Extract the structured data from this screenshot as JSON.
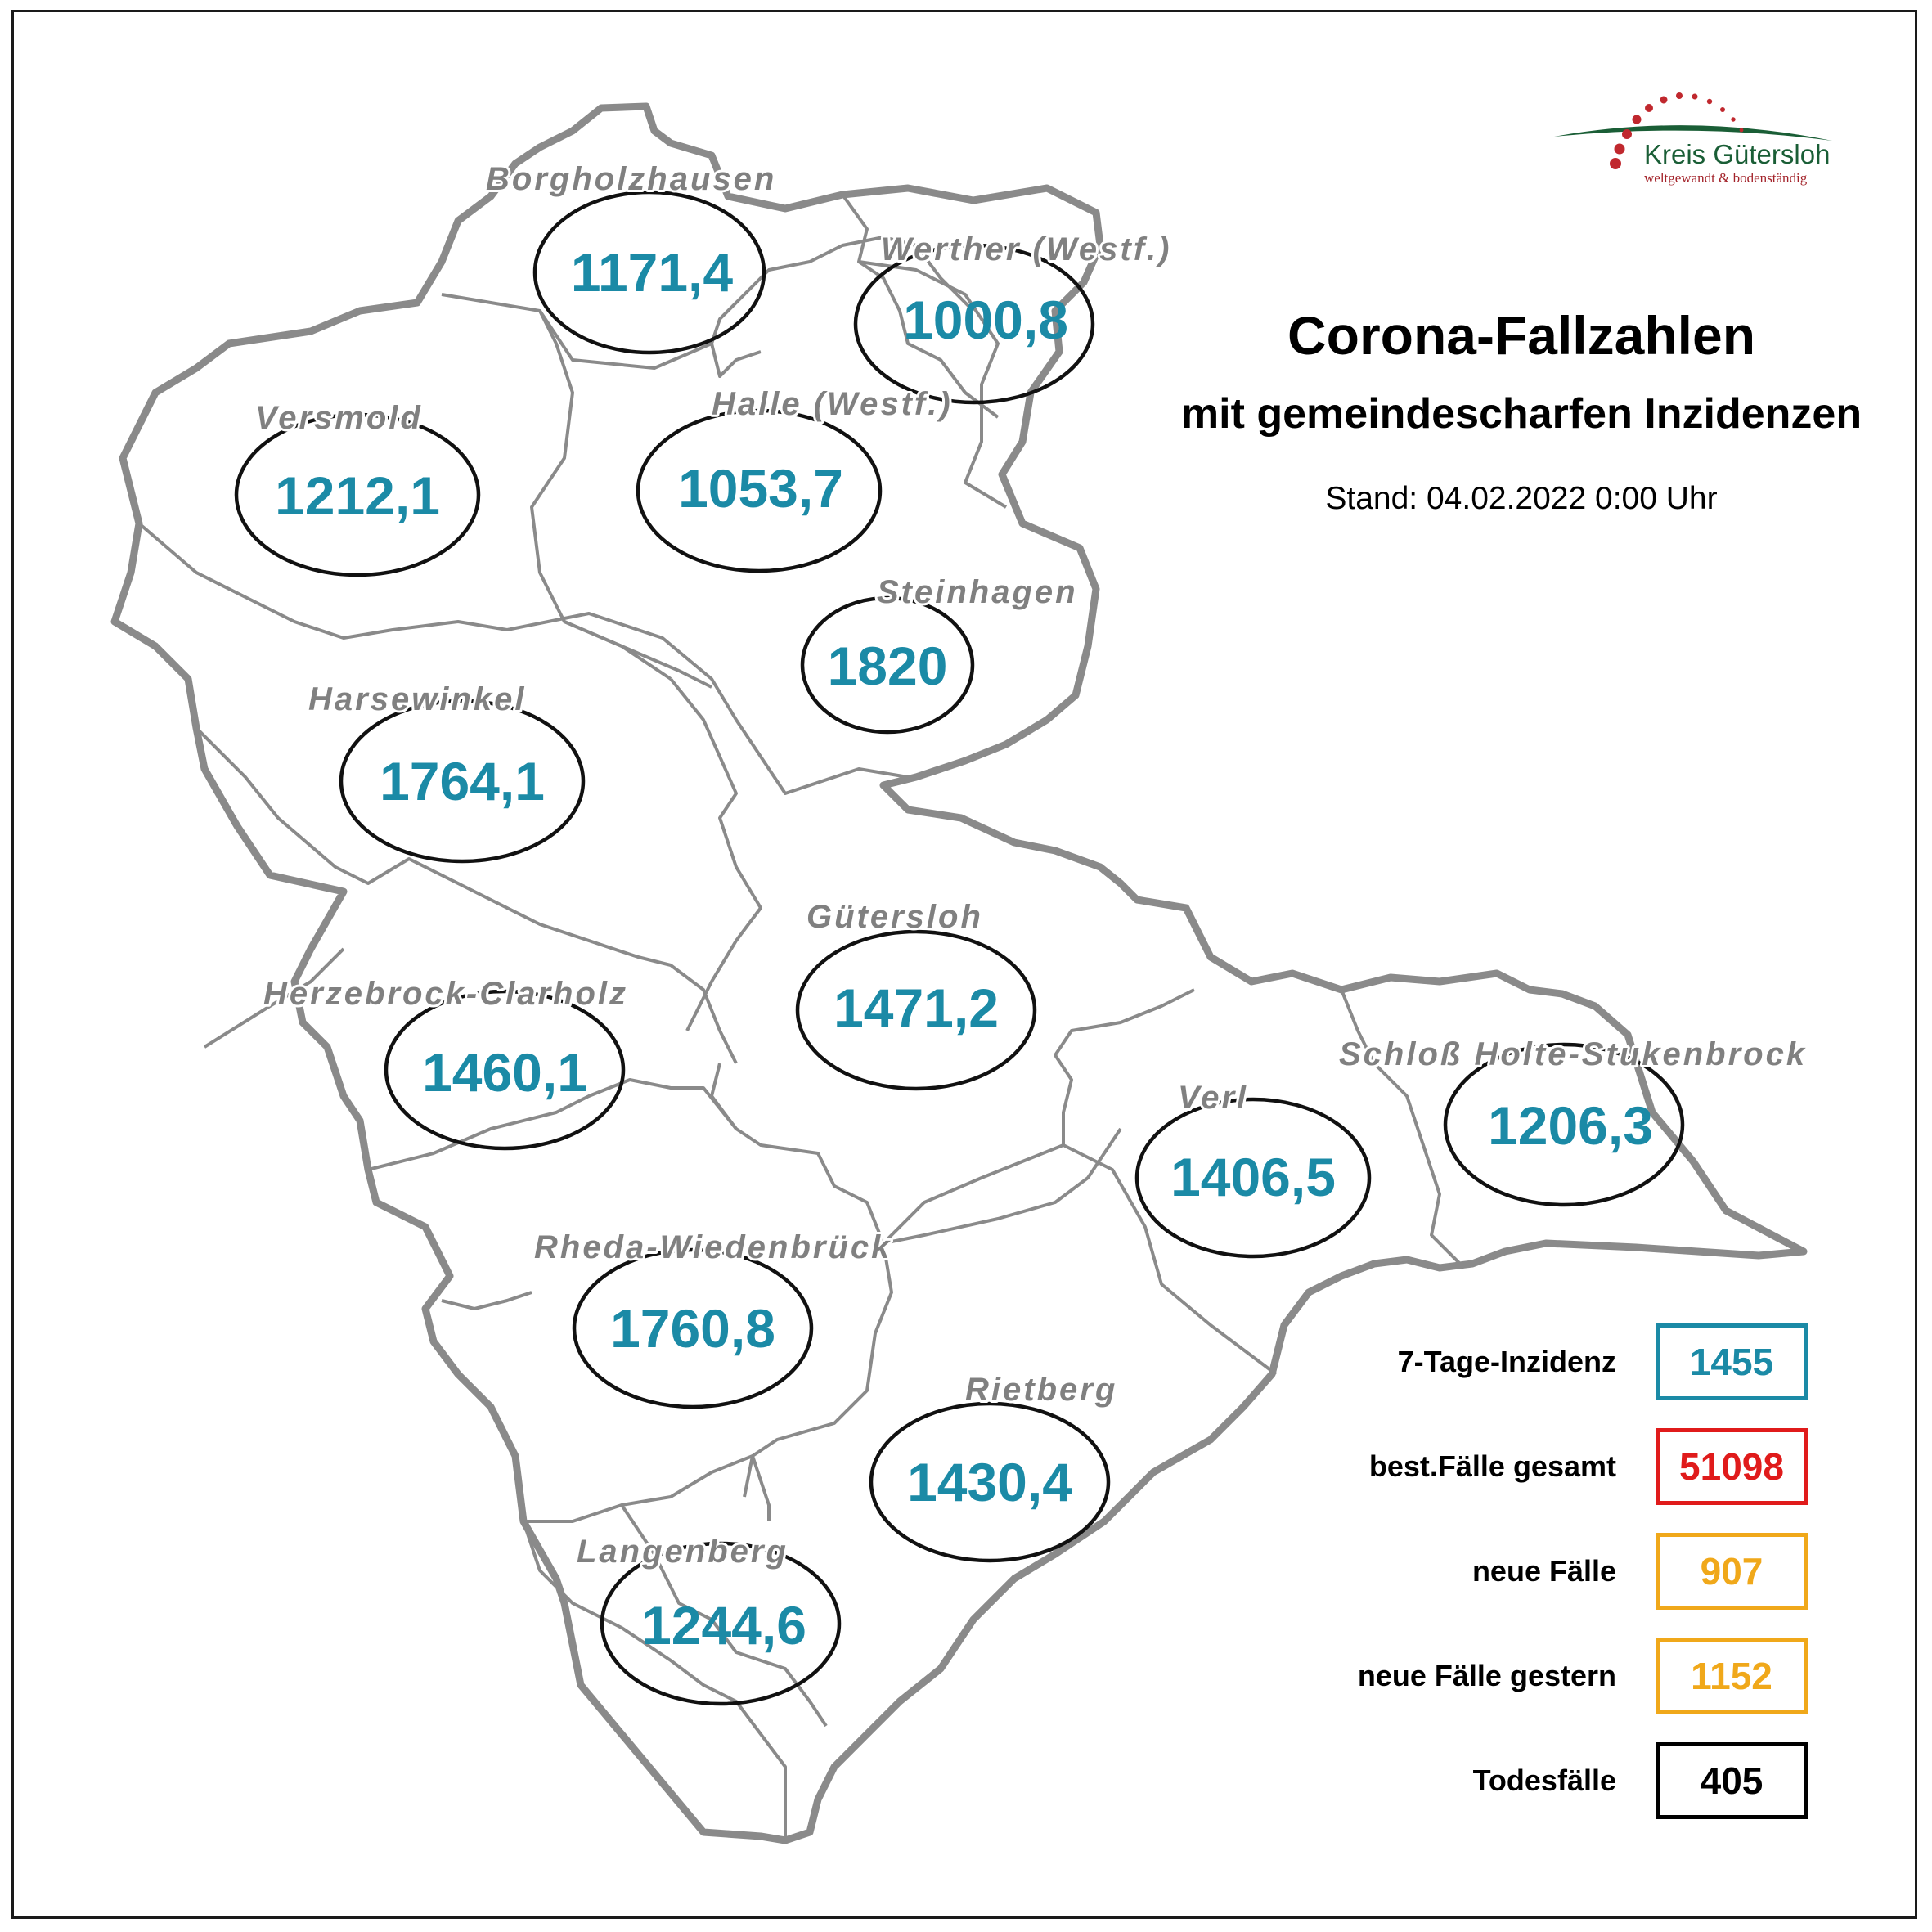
{
  "header": {
    "title": "Corona-Fallzahlen",
    "subtitle": "mit gemeindescharfen Inzidenzen",
    "stand": "Stand: 04.02.2022 0:00 Uhr"
  },
  "logo": {
    "name": "Kreis Gütersloh",
    "slogan": "weltgewandt & bodenständig",
    "colors": {
      "green": "#1a5e36",
      "red": "#c0282e"
    }
  },
  "municipalities": [
    {
      "name": "Borgholzhausen",
      "value": "1171,4"
    },
    {
      "name": "Werther (Westf.)",
      "value": "1000,8"
    },
    {
      "name": "Versmold",
      "value": "1212,1"
    },
    {
      "name": "Halle (Westf.)",
      "value": "1053,7"
    },
    {
      "name": "Steinhagen",
      "value": "1820"
    },
    {
      "name": "Harsewinkel",
      "value": "1764,1"
    },
    {
      "name": "Gütersloh",
      "value": "1471,2"
    },
    {
      "name": "Herzebrock-Clarholz",
      "value": "1460,1"
    },
    {
      "name": "Schloß Holte-Stukenbrock",
      "value": "1206,3"
    },
    {
      "name": "Verl",
      "value": "1406,5"
    },
    {
      "name": "Rheda-Wiedenbrück",
      "value": "1760,8"
    },
    {
      "name": "Rietberg",
      "value": "1430,4"
    },
    {
      "name": "Langenberg",
      "value": "1244,6"
    }
  ],
  "legend": [
    {
      "label": "7-Tage-Inzidenz",
      "value": "1455",
      "color": "#1b8aa6"
    },
    {
      "label": "best.Fälle gesamt",
      "value": "51098",
      "color": "#e01b1b"
    },
    {
      "label": "neue Fälle",
      "value": "907",
      "color": "#f0a81a"
    },
    {
      "label": "neue Fälle gestern",
      "value": "1152",
      "color": "#f0a81a"
    },
    {
      "label": "Todesfälle",
      "value": "405",
      "color": "#000000"
    }
  ],
  "colors": {
    "value_text": "#1b8aa6",
    "name_text": "#808080",
    "border": "#8a8a8a"
  }
}
